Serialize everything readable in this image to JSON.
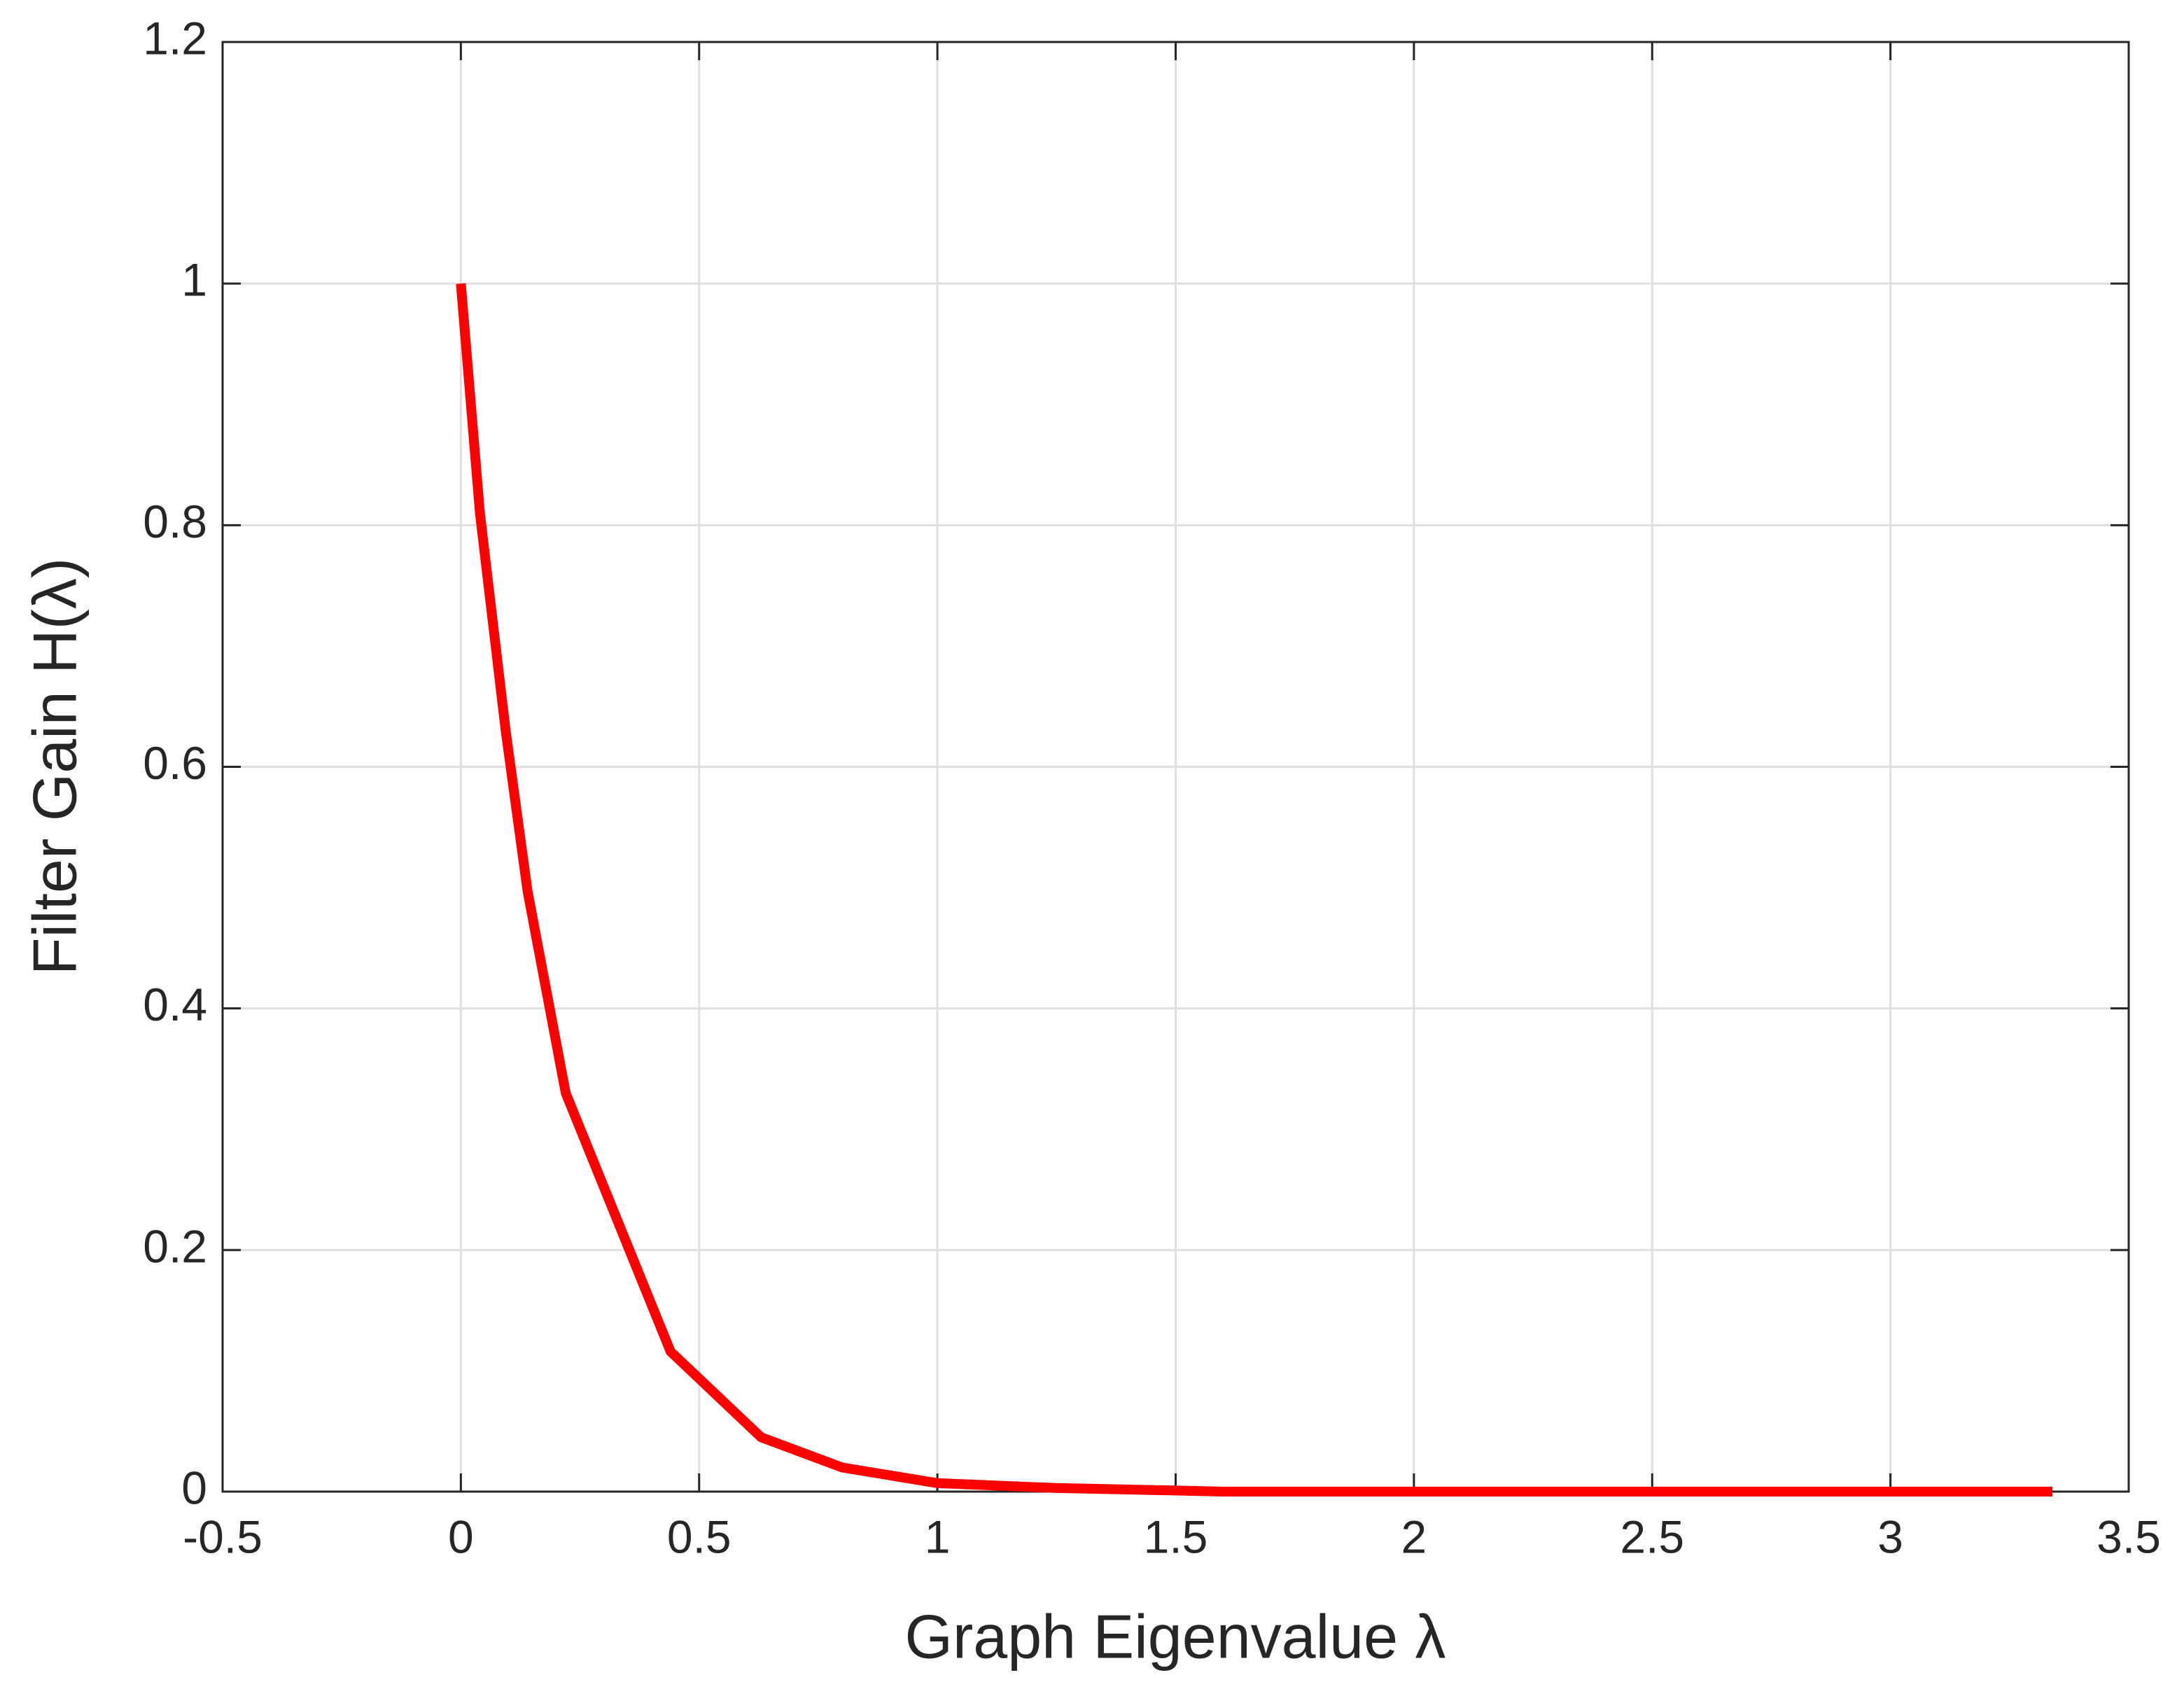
{
  "chart_data": {
    "type": "line",
    "xlabel": "Graph Eigenvalue λ",
    "ylabel": "Filter Gain H(λ)",
    "x": [
      0,
      0.04,
      0.094,
      0.14,
      0.22,
      0.44,
      0.63,
      0.8,
      1.0,
      1.25,
      1.49,
      1.6,
      2.0,
      2.5,
      3.0,
      3.34
    ],
    "series": [
      {
        "color": "#ff0000",
        "values": [
          1,
          0.81,
          0.63,
          0.497,
          0.33,
          0.116,
          0.045,
          0.02,
          0.007,
          0.003,
          0.001,
          0,
          0,
          0,
          0,
          0
        ]
      }
    ],
    "xlim": [
      -0.5,
      3.5
    ],
    "xticks": [
      -0.5,
      0,
      0.5,
      1,
      1.5,
      2,
      2.5,
      3,
      3.5
    ],
    "ylim": [
      0,
      1.2
    ],
    "yticks": [
      0,
      0.2,
      0.4,
      0.6,
      0.8,
      1,
      1.2
    ],
    "grid": true
  }
}
